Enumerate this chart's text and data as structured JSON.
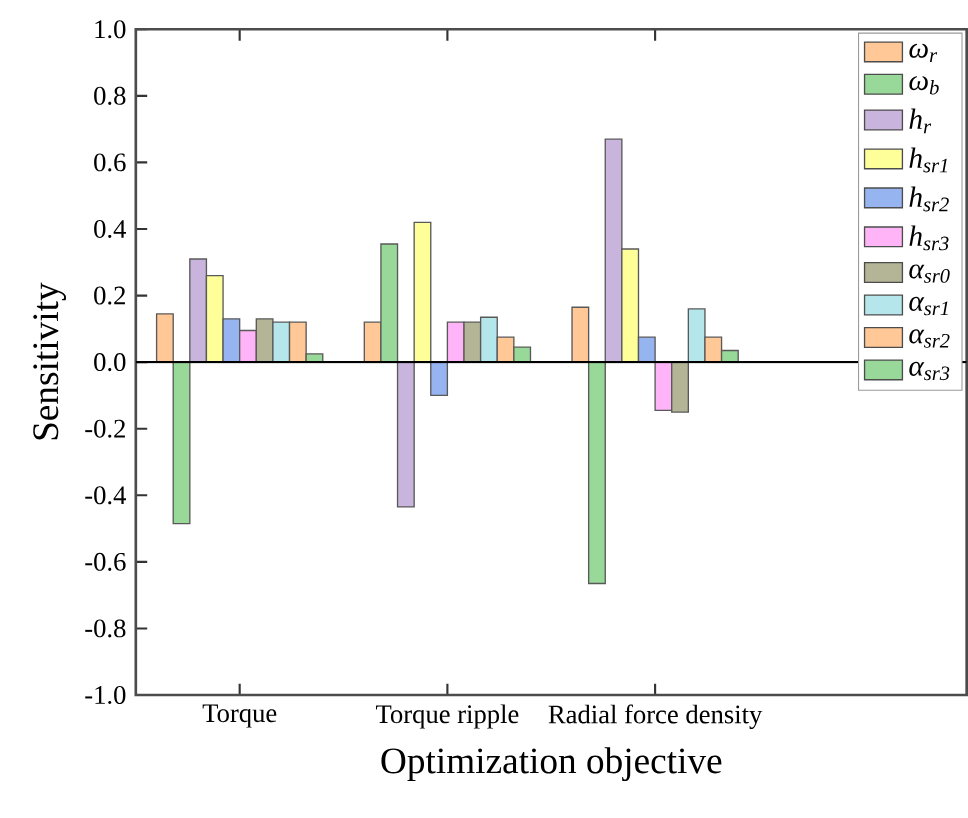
{
  "chart_data": {
    "type": "bar",
    "xlabel": "Optimization objective",
    "ylabel": "Sensitivity",
    "categories": [
      "Torque",
      "Torque ripple",
      "Radial force density"
    ],
    "series": [
      {
        "name": "ω$_{r}$",
        "color": "#ffc896",
        "values": [
          0.145,
          0.12,
          0.165
        ]
      },
      {
        "name": "ω$_{b}$",
        "color": "#98d898",
        "values": [
          -0.485,
          0.355,
          -0.665
        ]
      },
      {
        "name": "h$_{r}$",
        "color": "#c8b4dc",
        "values": [
          0.31,
          -0.435,
          0.67
        ]
      },
      {
        "name": "h$_{sr1}$",
        "color": "#ffff9a",
        "values": [
          0.26,
          0.42,
          0.34
        ]
      },
      {
        "name": "h$_{sr2}$",
        "color": "#96b4f0",
        "values": [
          0.13,
          -0.1,
          0.075
        ]
      },
      {
        "name": "h$_{sr3}$",
        "color": "#ffb4f8",
        "values": [
          0.095,
          0.12,
          -0.145
        ]
      },
      {
        "name": "α$_{sr0}$",
        "color": "#b4b496",
        "values": [
          0.13,
          0.12,
          -0.15
        ]
      },
      {
        "name": "α$_{sr1}$",
        "color": "#b4e6ec",
        "values": [
          0.12,
          0.135,
          0.16
        ]
      },
      {
        "name": "α$_{sr2}$",
        "color": "#ffc896",
        "values": [
          0.12,
          0.075,
          0.075
        ]
      },
      {
        "name": "α$_{sr3}$",
        "color": "#98d898",
        "values": [
          0.025,
          0.045,
          0.035
        ]
      }
    ],
    "ylim": [
      -1.0,
      1.0
    ],
    "yticks": [
      {
        "value": -1.0,
        "label": "-1.0"
      },
      {
        "value": -0.8,
        "label": "-0.8"
      },
      {
        "value": -0.6,
        "label": "-0.6"
      },
      {
        "value": -0.4,
        "label": "-0.4"
      },
      {
        "value": -0.2,
        "label": "-0.2"
      },
      {
        "value": 0.0,
        "label": "0.0"
      },
      {
        "value": 0.2,
        "label": "0.2"
      },
      {
        "value": 0.4,
        "label": "0.4"
      },
      {
        "value": 0.6,
        "label": "0.6"
      },
      {
        "value": 0.8,
        "label": "0.8"
      },
      {
        "value": 1.0,
        "label": "1.0"
      }
    ],
    "ref_lines": [
      {
        "axis": "y",
        "value": 0,
        "color": "#000000"
      }
    ],
    "legend": "top right"
  }
}
